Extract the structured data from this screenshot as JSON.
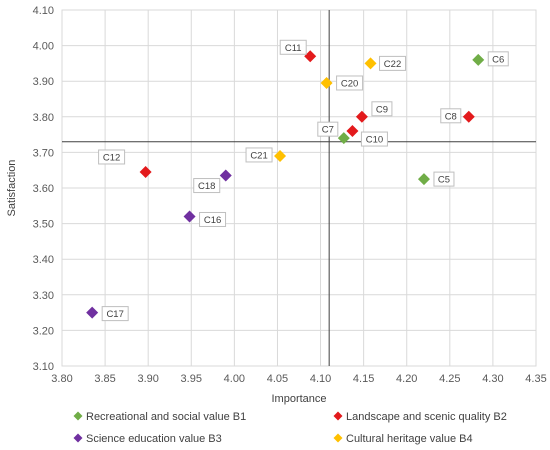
{
  "chart_data": {
    "type": "scatter",
    "xlabel": "Importance",
    "ylabel": "Satisfaction",
    "xlim": [
      3.8,
      4.35
    ],
    "ylim": [
      3.1,
      4.1
    ],
    "x_ticks": [
      "3.80",
      "3.85",
      "3.90",
      "3.95",
      "4.00",
      "4.05",
      "4.10",
      "4.15",
      "4.20",
      "4.25",
      "4.30",
      "4.35"
    ],
    "y_ticks": [
      "3.10",
      "3.20",
      "3.30",
      "3.40",
      "3.50",
      "3.60",
      "3.70",
      "3.80",
      "3.90",
      "4.00",
      "4.10"
    ],
    "reference_lines": {
      "x": 4.11,
      "y": 3.73
    },
    "grid": true,
    "legend_position": "bottom",
    "series": [
      {
        "name": "Recreational and social value B1",
        "color": "#70AD47",
        "points": [
          {
            "label": "C5",
            "x": 4.22,
            "y": 3.625
          },
          {
            "label": "C6",
            "x": 4.283,
            "y": 3.96
          },
          {
            "label": "C7",
            "x": 4.127,
            "y": 3.74
          }
        ]
      },
      {
        "name": "Landscape and scenic quality B2",
        "color": "#E31A1C",
        "points": [
          {
            "label": "C8",
            "x": 4.272,
            "y": 3.8
          },
          {
            "label": "C9",
            "x": 4.148,
            "y": 3.8
          },
          {
            "label": "C10",
            "x": 4.137,
            "y": 3.76
          },
          {
            "label": "C11",
            "x": 4.088,
            "y": 3.97
          },
          {
            "label": "C12",
            "x": 3.897,
            "y": 3.645
          }
        ]
      },
      {
        "name": "Science education value B3",
        "color": "#7030A0",
        "points": [
          {
            "label": "C16",
            "x": 3.948,
            "y": 3.52
          },
          {
            "label": "C17",
            "x": 3.835,
            "y": 3.25
          },
          {
            "label": "C18",
            "x": 3.99,
            "y": 3.635
          }
        ]
      },
      {
        "name": "Cultural heritage value B4",
        "color": "#FFC000",
        "points": [
          {
            "label": "C20",
            "x": 4.107,
            "y": 3.895
          },
          {
            "label": "C21",
            "x": 4.053,
            "y": 3.69
          },
          {
            "label": "C22",
            "x": 4.158,
            "y": 3.95
          }
        ]
      }
    ]
  }
}
